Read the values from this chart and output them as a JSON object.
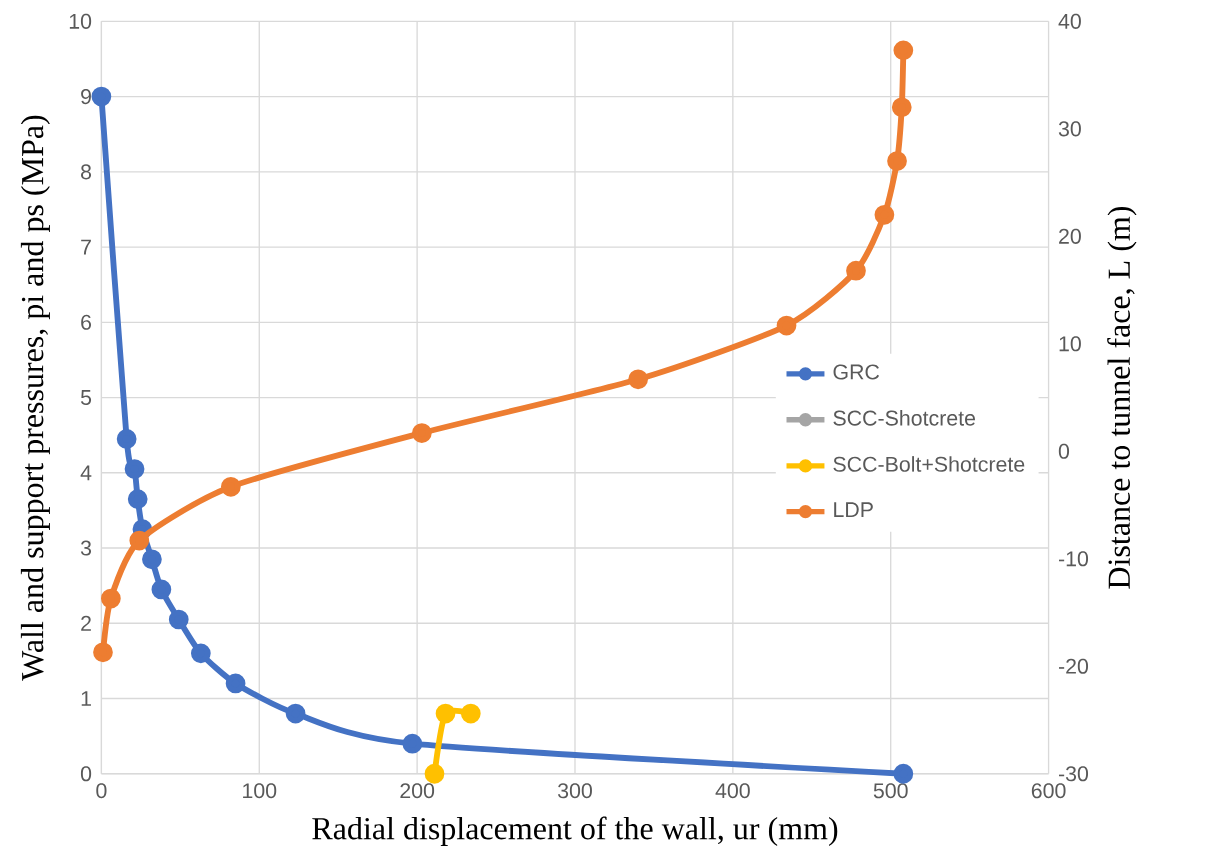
{
  "chart_data": {
    "type": "line",
    "xlabel": "Radial displacement of the wall, ur (mm)",
    "ylabel": "Wall and support pressures, pi and ps (MPa)",
    "y2label": "Distance to tunnel face, L (m)",
    "xlim": [
      0,
      600
    ],
    "xticks": [
      0,
      100,
      200,
      300,
      400,
      500,
      600
    ],
    "ylim": [
      0,
      10
    ],
    "yticks": [
      0,
      1,
      2,
      3,
      4,
      5,
      6,
      7,
      8,
      9,
      10
    ],
    "y2lim": [
      -30,
      40
    ],
    "y2ticks": [
      -30,
      -20,
      -10,
      0,
      10,
      20,
      30,
      40
    ],
    "grid": true,
    "legend": "right",
    "marker": "circle",
    "line_style": "solid",
    "series": [
      {
        "name": "GRC",
        "color": "#4472c4",
        "x": [
          0,
          16,
          21,
          23,
          26,
          32,
          38,
          49,
          63,
          85,
          123,
          197,
          508
        ],
        "values": [
          9,
          4.45,
          4.05,
          3.65,
          3.25,
          2.85,
          2.45,
          2.05,
          1.6,
          1.2,
          0.8,
          0.4,
          0
        ]
      },
      {
        "name": "SCC-Shotcrete",
        "color": "#a5a5a5"
      },
      {
        "name": "SCC-Bolt+Shotcrete",
        "color": "#ffc000",
        "x": [
          211,
          218,
          234
        ],
        "values": [
          0,
          0.8,
          0.8
        ]
      },
      {
        "name": "LDP",
        "color": "#ed7d31",
        "axis": "y2",
        "x": [
          1,
          6,
          24,
          82,
          203,
          340,
          434,
          478,
          496,
          504,
          507,
          508
        ],
        "values": [
          -18.7,
          -13.7,
          -8.3,
          -3.3,
          1.7,
          6.7,
          11.7,
          16.8,
          22,
          27,
          32,
          37.3
        ]
      }
    ]
  }
}
